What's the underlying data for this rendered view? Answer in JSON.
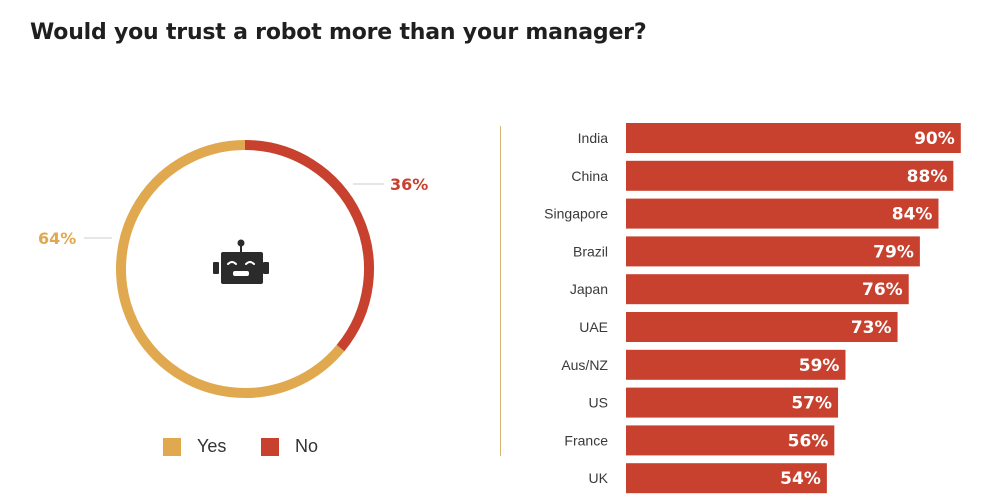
{
  "title": "Would you trust a robot more than your manager?",
  "colors": {
    "yes": "#e1a94f",
    "no": "#c8412f",
    "bar": "#c8412f",
    "divider": "#d9b873",
    "icon": "#2b2b2b"
  },
  "icon": "robot-head-icon",
  "legend": {
    "yes": "Yes",
    "no": "No"
  },
  "chart_data": [
    {
      "type": "pie",
      "title": "",
      "labels": [
        "Yes",
        "No"
      ],
      "values": [
        64,
        36
      ],
      "value_labels": [
        "64%",
        "36%"
      ],
      "legend": "bottom"
    },
    {
      "type": "bar",
      "orientation": "horizontal",
      "title": "",
      "categories": [
        "India",
        "China",
        "Singapore",
        "Brazil",
        "Japan",
        "UAE",
        "Aus/NZ",
        "US",
        "France",
        "UK"
      ],
      "values": [
        90,
        88,
        84,
        79,
        76,
        73,
        59,
        57,
        56,
        54
      ],
      "value_labels": [
        "90%",
        "88%",
        "84%",
        "79%",
        "76%",
        "73%",
        "59%",
        "57%",
        "56%",
        "54%"
      ],
      "xlim": [
        0,
        100
      ],
      "grid": false
    }
  ]
}
